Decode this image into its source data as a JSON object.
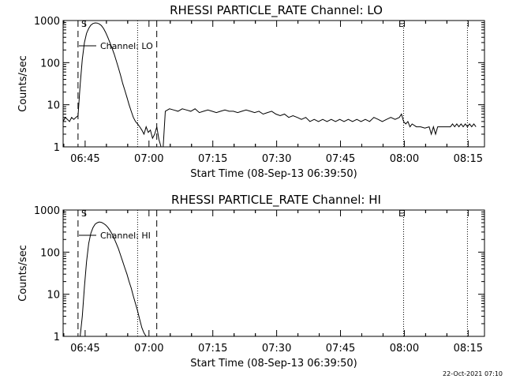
{
  "footer": {
    "date_stamp": "22-Oct-2021 07:10"
  },
  "chart_data": [
    {
      "type": "line",
      "title": "RHESSI PARTICLE_RATE Channel: LO",
      "xlabel": "Start Time (08-Sep-13 06:39:50)",
      "ylabel": "Counts/sec",
      "yscale": "log",
      "ylim": [
        1,
        1000
      ],
      "xlim_minutes": [
        0,
        99
      ],
      "xticks": [
        "06:45",
        "07:00",
        "07:15",
        "07:30",
        "07:45",
        "08:00",
        "08:15"
      ],
      "xtick_minutes": [
        5.17,
        20.17,
        35.17,
        50.17,
        65.17,
        80.17,
        95.17
      ],
      "yticks": [
        "1",
        "10",
        "100",
        "1000"
      ],
      "ytick_values": [
        1,
        10,
        100,
        1000
      ],
      "legend": "Channel: LO",
      "markers": {
        "S": "S",
        "E": "E"
      },
      "dashed_lines_minutes": [
        3.5,
        22.0
      ],
      "dotted_lines_minutes": [
        17.5,
        80.0,
        95.0
      ],
      "series": [
        {
          "x": [
            0,
            0.5,
            1,
            1.5,
            2,
            2.5,
            3,
            3.5,
            4,
            4.5,
            5,
            5.5,
            6,
            6.5,
            7,
            7.5,
            8,
            8.5,
            9,
            9.5,
            10,
            10.5,
            11,
            11.5,
            12,
            12.5,
            13,
            13.5,
            14,
            14.5,
            15,
            15.5,
            16,
            16.5,
            17,
            17.5,
            18,
            18.5,
            19,
            19.5,
            20,
            20.5,
            21,
            21.5,
            22,
            22.5,
            23,
            23.5,
            24,
            25,
            26,
            27,
            28,
            29,
            30,
            31,
            32,
            33,
            34,
            35,
            36,
            37,
            38,
            39,
            40,
            41,
            42,
            43,
            44,
            45,
            46,
            47,
            48,
            49,
            50,
            51,
            52,
            53,
            54,
            55,
            56,
            57,
            58,
            59,
            60,
            61,
            62,
            63,
            64,
            65,
            66,
            67,
            68,
            69,
            70,
            71,
            72,
            73,
            74,
            75,
            76,
            77,
            78,
            79,
            79.5,
            80,
            80.5,
            81,
            81.5,
            82,
            83,
            84,
            85,
            86,
            86.5,
            87,
            87.5,
            88,
            89,
            90,
            91,
            91.5,
            92,
            92.5,
            93,
            93.5,
            94,
            94.5,
            95,
            95.5,
            96,
            96.5,
            97
          ],
          "y": [
            4,
            5,
            4.5,
            4,
            5,
            4.5,
            5,
            5.5,
            30,
            120,
            300,
            500,
            650,
            780,
            850,
            880,
            870,
            830,
            760,
            650,
            520,
            400,
            300,
            220,
            160,
            110,
            75,
            50,
            32,
            22,
            15,
            10,
            7,
            5,
            4,
            3.5,
            3,
            2.5,
            2,
            3,
            2.2,
            2.5,
            1.6,
            2,
            3,
            1.5,
            1,
            1,
            7,
            8,
            7.5,
            7,
            8,
            7.5,
            7,
            8,
            6.5,
            7,
            7.5,
            7,
            6.5,
            7,
            7.5,
            7,
            7,
            6.5,
            7,
            7.5,
            7,
            6.5,
            7,
            6,
            6.5,
            7,
            6,
            5.5,
            6,
            5,
            5.5,
            5,
            4.5,
            5,
            4,
            4.5,
            4,
            4.5,
            4,
            4.5,
            4,
            4.5,
            4,
            4.5,
            4,
            4.5,
            4,
            4.5,
            4,
            5,
            4.5,
            4,
            4.5,
            5,
            4.5,
            5,
            6,
            4,
            3.5,
            4,
            3,
            3.5,
            3,
            3,
            2.8,
            3,
            2,
            3,
            2,
            3,
            3,
            3,
            3,
            3.5,
            3,
            3.5,
            3,
            3.5,
            3,
            3.5,
            3,
            3.5,
            3,
            3.5,
            3
          ]
        }
      ]
    },
    {
      "type": "line",
      "title": "RHESSI PARTICLE_RATE Channel: HI",
      "xlabel": "Start Time (08-Sep-13 06:39:50)",
      "ylabel": "Counts/sec",
      "yscale": "log",
      "ylim": [
        1,
        1000
      ],
      "xlim_minutes": [
        0,
        99
      ],
      "xticks": [
        "06:45",
        "07:00",
        "07:15",
        "07:30",
        "07:45",
        "08:00",
        "08:15"
      ],
      "xtick_minutes": [
        5.17,
        20.17,
        35.17,
        50.17,
        65.17,
        80.17,
        95.17
      ],
      "yticks": [
        "1",
        "10",
        "100",
        "1000"
      ],
      "ytick_values": [
        1,
        10,
        100,
        1000
      ],
      "legend": "Channel: HI",
      "markers": {
        "S": "S",
        "E": "E"
      },
      "dashed_lines_minutes": [
        3.5,
        22.0
      ],
      "dotted_lines_minutes": [
        17.5,
        80.0,
        95.0
      ],
      "series": [
        {
          "x": [
            4,
            4.5,
            5,
            5.5,
            6,
            6.5,
            7,
            7.5,
            8,
            8.5,
            9,
            9.5,
            10,
            10.5,
            11,
            11.5,
            12,
            12.5,
            13,
            13.5,
            14,
            14.5,
            15,
            15.5,
            16,
            16.5,
            17,
            17.5,
            18,
            18.5,
            19,
            19.5
          ],
          "y": [
            1,
            3,
            15,
            60,
            160,
            280,
            380,
            460,
            500,
            520,
            510,
            480,
            440,
            390,
            330,
            270,
            210,
            160,
            120,
            85,
            60,
            42,
            30,
            20,
            14,
            9,
            6,
            4,
            2.5,
            1.6,
            1.2,
            1
          ]
        }
      ]
    }
  ]
}
